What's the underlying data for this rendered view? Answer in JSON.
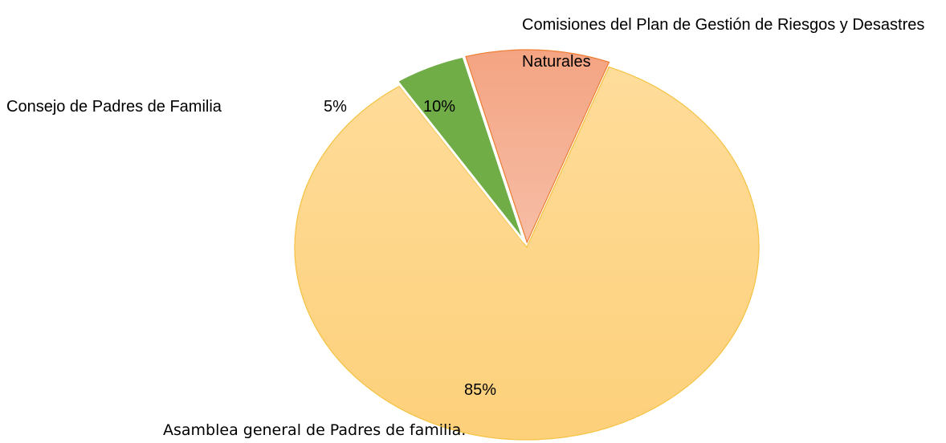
{
  "chart_data": {
    "type": "pie",
    "categories": [
      "Asamblea general de Padres de familia.",
      "Consejo de Padres de Familia",
      "Comisiones del Plan de Gestión de Riesgos y Desastres Naturales"
    ],
    "values": [
      85,
      5,
      10
    ],
    "value_labels": [
      "85%",
      "5%",
      "10%"
    ],
    "colors": [
      "#fdd68a",
      "#70ad47",
      "#f4a98a"
    ]
  }
}
